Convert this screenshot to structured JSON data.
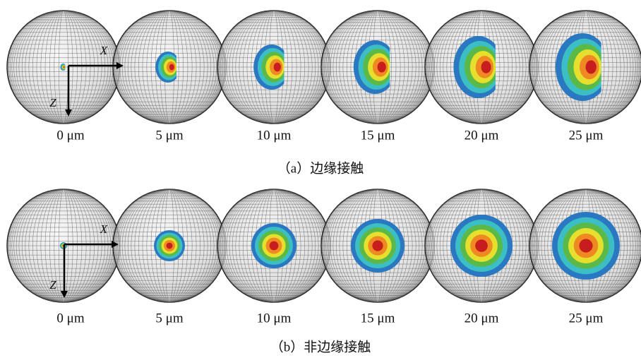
{
  "rows": [
    {
      "labels": [
        "0 μm",
        "5 μm",
        "10 μm",
        "15 μm",
        "20 μm",
        "25 μm"
      ],
      "axes": {
        "x": "X",
        "z": "Z"
      },
      "caption": "（a）边缘接触"
    },
    {
      "labels": [
        "0 μm",
        "5 μm",
        "10 μm",
        "15 μm",
        "20 μm",
        "25 μm"
      ],
      "axes": {
        "x": "X",
        "z": "Z"
      },
      "caption": "（b）非边缘接触"
    }
  ]
}
